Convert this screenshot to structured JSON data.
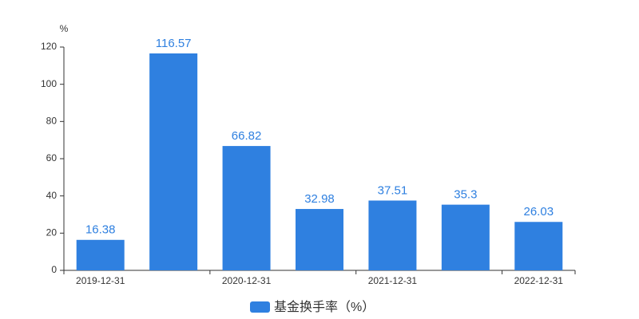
{
  "chart_data": {
    "type": "bar",
    "y_unit": "%",
    "categories": [
      "2019-12-31",
      null,
      "2020-12-31",
      null,
      "2021-12-31",
      null,
      "2022-12-31"
    ],
    "series": [
      {
        "name": "基金换手率（%）",
        "color": "#2f80e0",
        "values": [
          16.38,
          116.57,
          66.82,
          32.98,
          37.51,
          35.3,
          26.03
        ]
      }
    ],
    "ylim": [
      0,
      120
    ],
    "yticks": [
      0,
      20,
      40,
      60,
      80,
      100,
      120
    ],
    "grid": false
  }
}
